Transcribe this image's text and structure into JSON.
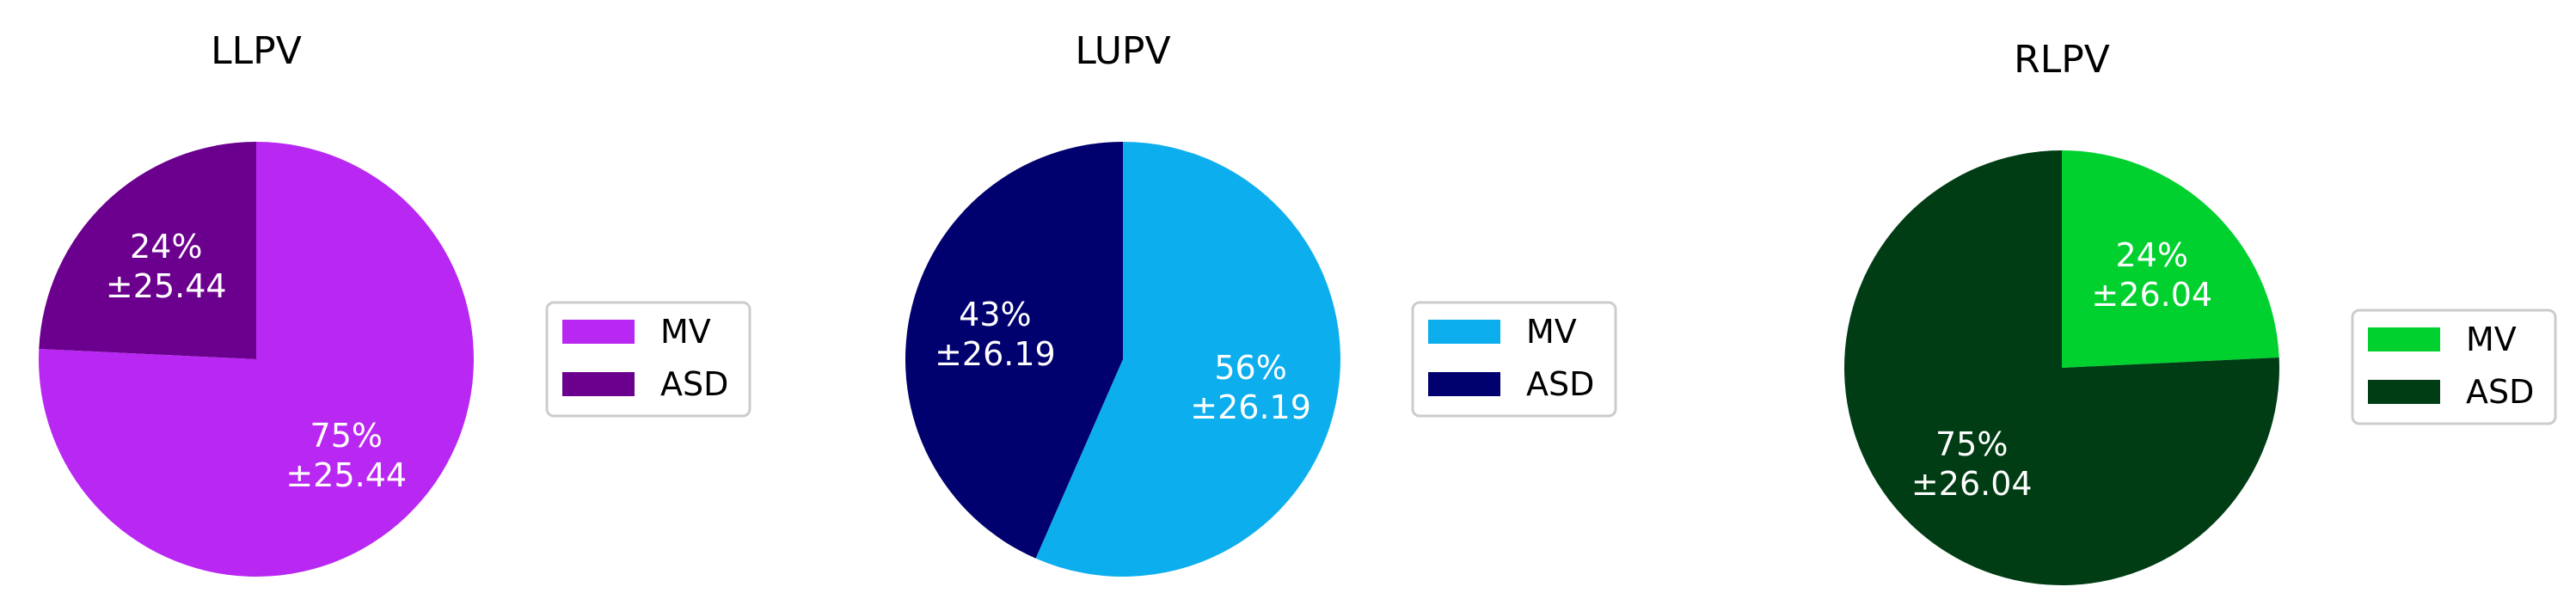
{
  "chart_data": [
    {
      "type": "pie",
      "title": "LLPV",
      "start_angle_deg": 90,
      "direction": "clockwise",
      "legend": "right",
      "slices": [
        {
          "name": "MV",
          "value": 75,
          "label_pct": "75%",
          "label_err": "±25.44",
          "color": "#b928f2"
        },
        {
          "name": "ASD",
          "value": 24,
          "label_pct": "24%",
          "label_err": "±25.44",
          "color": "#6b008e"
        }
      ]
    },
    {
      "type": "pie",
      "title": "LUPV",
      "start_angle_deg": 90,
      "direction": "clockwise",
      "legend": "right",
      "slices": [
        {
          "name": "MV",
          "value": 56,
          "label_pct": "56%",
          "label_err": "±26.19",
          "color": "#0daeee"
        },
        {
          "name": "ASD",
          "value": 43,
          "label_pct": "43%",
          "label_err": "±26.19",
          "color": "#00006e"
        }
      ]
    },
    {
      "type": "pie",
      "title": "RLPV",
      "start_angle_deg": 90,
      "direction": "clockwise",
      "legend": "right",
      "slices": [
        {
          "name": "MV",
          "value": 24,
          "label_pct": "24%",
          "label_err": "±26.04",
          "color": "#00d12e"
        },
        {
          "name": "ASD",
          "value": 75,
          "label_pct": "75%",
          "label_err": "±26.04",
          "color": "#003d14"
        }
      ]
    }
  ]
}
